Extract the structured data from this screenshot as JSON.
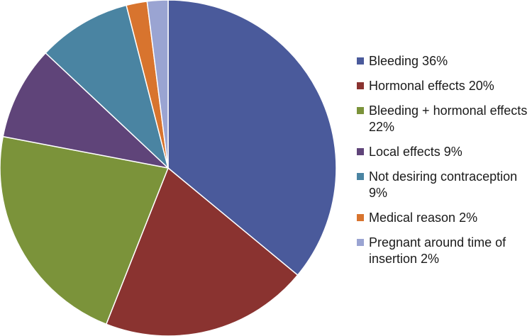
{
  "chart_data": {
    "type": "pie",
    "title": "",
    "slices": [
      {
        "label": "Bleeding 36%",
        "value": 36,
        "color": "#4a5a9b"
      },
      {
        "label": "Hormonal effects 20%",
        "value": 20,
        "color": "#8a3330"
      },
      {
        "label": "Bleeding + hormonal effects 22%",
        "value": 22,
        "color": "#7b933a"
      },
      {
        "label": "Local effects 9%",
        "value": 9,
        "color": "#5f4479"
      },
      {
        "label": "Not desiring contraception 9%",
        "value": 9,
        "color": "#4a84a2"
      },
      {
        "label": "Medical reason 2%",
        "value": 2,
        "color": "#d8742e"
      },
      {
        "label": "Pregnant around time of insertion 2%",
        "value": 2,
        "color": "#9aa4d2"
      }
    ],
    "start_angle_deg": 0,
    "direction": "clockwise",
    "legend_position": "right"
  }
}
